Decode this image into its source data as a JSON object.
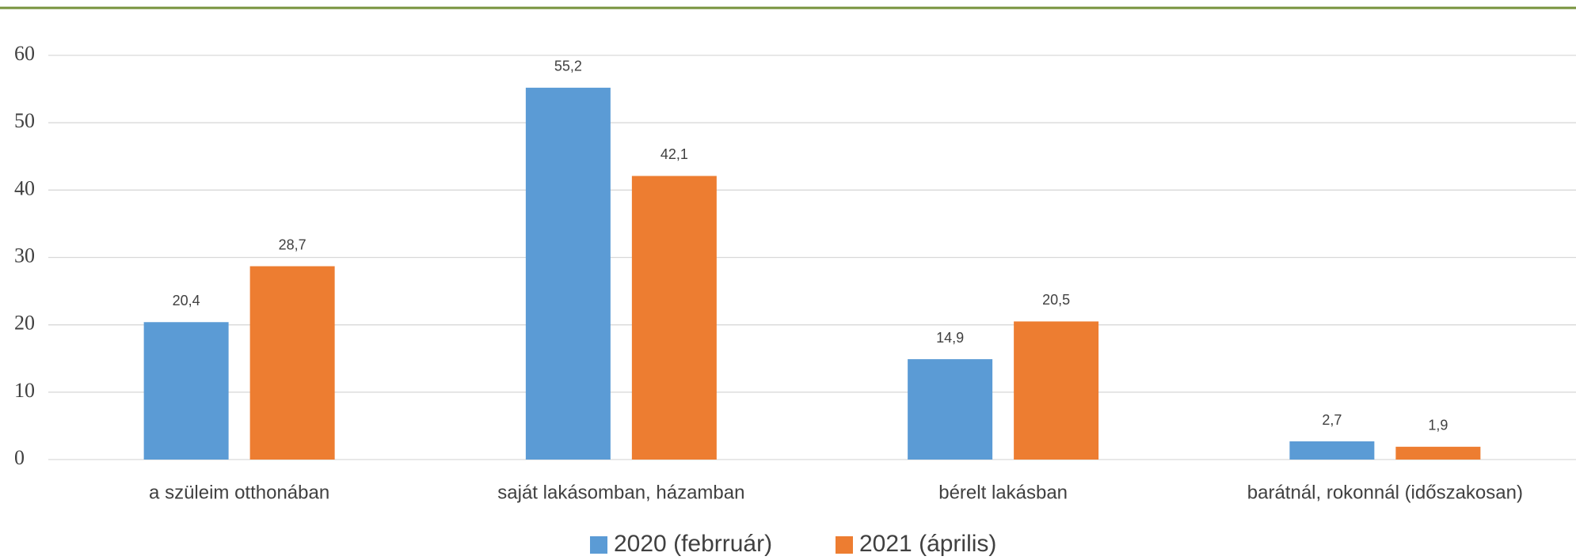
{
  "chart_data": {
    "type": "bar",
    "categories": [
      "a szüleim otthonában",
      "saját lakásomban, házamban",
      "bérelt lakásban",
      "barátnál, rokonnál (időszakosan)"
    ],
    "series": [
      {
        "name": "2020 (febrruár)",
        "color": "#5b9bd5",
        "values": [
          20.4,
          55.2,
          14.9,
          2.7
        ],
        "value_labels": [
          "20,4",
          "55,2",
          "14,9",
          "2,7"
        ]
      },
      {
        "name": "2021 (április)",
        "color": "#ed7d31",
        "values": [
          28.7,
          42.1,
          20.5,
          1.9
        ],
        "value_labels": [
          "28,7",
          "42,1",
          "20,5",
          "1,9"
        ]
      }
    ],
    "ylim": [
      0,
      60
    ],
    "yticks": [
      0,
      10,
      20,
      30,
      40,
      50,
      60
    ],
    "grid": true,
    "legend": "bottom"
  }
}
